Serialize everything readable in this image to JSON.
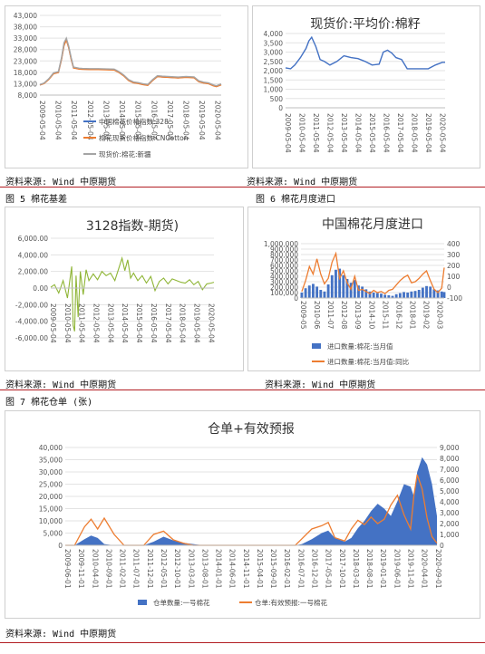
{
  "captions": {
    "source_left_1": "资料来源: Wind  中原期货",
    "source_right_1": "资料来源: Wind  中原期货",
    "fig5": "图 5 棉花基差",
    "fig6": "图 6 棉花月度进口",
    "source_left_2": "资料来源: Wind  中原期货",
    "source_right_2": "资料来源: Wind  中原期货",
    "fig7": "图 7 棉花仓单 (张)",
    "source_bottom": "资料来源: Wind 中原期货"
  },
  "chart_data": [
    {
      "id": "chart1",
      "type": "line",
      "title": "",
      "x_ticks": [
        "2009-05-04",
        "2010-05-04",
        "2011-05-04",
        "2012-05-04",
        "2013-05-04",
        "2014-05-04",
        "2015-05-04",
        "2016-05-04",
        "2017-05-04",
        "2018-05-04",
        "2019-05-04",
        "2020-05-04"
      ],
      "y_ticks": [
        "8,000",
        "13,000",
        "18,000",
        "23,000",
        "28,000",
        "33,000",
        "38,000",
        "43,000"
      ],
      "ylim": [
        8000,
        43000
      ],
      "x": [
        2009.34,
        2009.6,
        2009.9,
        2010.2,
        2010.5,
        2010.7,
        2010.85,
        2011.0,
        2011.15,
        2011.3,
        2011.45,
        2011.6,
        2011.8,
        2012.0,
        2012.5,
        2013.0,
        2013.5,
        2014.0,
        2014.3,
        2014.6,
        2014.9,
        2015.2,
        2015.5,
        2015.8,
        2016.1,
        2016.4,
        2016.7,
        2017.0,
        2017.5,
        2018.0,
        2018.5,
        2019.0,
        2019.3,
        2019.6,
        2019.9,
        2020.2,
        2020.4,
        2020.7
      ],
      "series": [
        {
          "name": "中国棉花价格指数:328",
          "color": "#4472c4",
          "values": [
            12500,
            13200,
            15000,
            17500,
            18000,
            24000,
            30000,
            32500,
            29000,
            24000,
            20000,
            19800,
            19500,
            19400,
            19300,
            19300,
            19200,
            19100,
            18000,
            16500,
            14500,
            13500,
            13200,
            12700,
            12400,
            14500,
            16200,
            16000,
            15800,
            15600,
            15900,
            15700,
            14000,
            13400,
            13100,
            12200,
            11800,
            12600
          ]
        },
        {
          "name": "棉花现货价格指数:CNCotton",
          "color": "#ed7d31",
          "values": [
            12400,
            13100,
            14900,
            17400,
            17900,
            23800,
            29700,
            32200,
            28800,
            23800,
            19900,
            19700,
            19400,
            19300,
            19200,
            19200,
            19100,
            19000,
            17900,
            16400,
            14400,
            13400,
            13100,
            12600,
            12300,
            14400,
            16100,
            15900,
            15700,
            15500,
            15800,
            15600,
            13900,
            13300,
            13000,
            12100,
            11700,
            12500
          ]
        },
        {
          "name": "现货价:棉花:新疆",
          "color": "#a5a5a5",
          "values": [
            12600,
            13300,
            15200,
            17800,
            18300,
            24500,
            31000,
            33000,
            29500,
            24500,
            20300,
            20100,
            19800,
            19700,
            19600,
            19600,
            19500,
            19400,
            18300,
            16800,
            14800,
            13800,
            13500,
            13000,
            12700,
            14800,
            16500,
            16300,
            16100,
            15900,
            16200,
            16000,
            14300,
            13700,
            13400,
            12500,
            12100,
            12900
          ]
        }
      ]
    },
    {
      "id": "chart2",
      "type": "line",
      "title": "现货价:平均价:棉籽",
      "x_ticks": [
        "2009-05-04",
        "2010-05-04",
        "2011-05-04",
        "2012-05-04",
        "2013-05-04",
        "2014-05-04",
        "2015-05-04",
        "2016-05-04",
        "2017-05-04",
        "2018-05-04",
        "2019-05-04",
        "2020-05-04"
      ],
      "y_ticks": [
        "0",
        "500",
        "1,000",
        "1,500",
        "2,000",
        "2,500",
        "3,000",
        "3,500",
        "4,000"
      ],
      "ylim": [
        0,
        4000
      ],
      "x": [
        2009.34,
        2009.7,
        2010.0,
        2010.4,
        2010.8,
        2011.0,
        2011.2,
        2011.5,
        2011.8,
        2012.1,
        2012.5,
        2013.0,
        2013.5,
        2014.0,
        2014.5,
        2015.0,
        2015.5,
        2016.0,
        2016.3,
        2016.6,
        2016.9,
        2017.2,
        2017.6,
        2018.0,
        2018.5,
        2019.0,
        2019.5,
        2020.0,
        2020.5,
        2020.7
      ],
      "series": [
        {
          "name": "",
          "color": "#4472c4",
          "values": [
            2150,
            2100,
            2300,
            2700,
            3200,
            3600,
            3800,
            3300,
            2600,
            2500,
            2300,
            2500,
            2800,
            2700,
            2650,
            2500,
            2300,
            2350,
            3000,
            3100,
            2950,
            2700,
            2600,
            2100,
            2100,
            2100,
            2100,
            2300,
            2450,
            2450
          ]
        }
      ]
    },
    {
      "id": "chart3",
      "type": "line",
      "title": "3128指数-期货)",
      "x_ticks": [
        "2009-05-04",
        "2010-05-04",
        "2011-05-04",
        "2012-05-04",
        "2013-05-04",
        "2014-05-04",
        "2015-05-04",
        "2016-05-04",
        "2017-05-04",
        "2018-05-04",
        "2019-05-04",
        "2020-05-04"
      ],
      "y_ticks": [
        "-6,000.00",
        "-4,000.00",
        "-2,000.00",
        "0.00",
        "2,000.00",
        "4,000.00",
        "6,000.00"
      ],
      "ylim": [
        -6000,
        6000
      ],
      "x": [
        2009.34,
        2009.6,
        2009.9,
        2010.2,
        2010.5,
        2010.8,
        2010.9,
        2011.0,
        2011.1,
        2011.25,
        2011.4,
        2011.6,
        2011.8,
        2012.0,
        2012.3,
        2012.6,
        2012.9,
        2013.2,
        2013.5,
        2013.8,
        2014.1,
        2014.3,
        2014.5,
        2014.7,
        2014.9,
        2015.1,
        2015.4,
        2015.7,
        2016.0,
        2016.3,
        2016.6,
        2016.9,
        2017.2,
        2017.5,
        2017.8,
        2018.1,
        2018.4,
        2018.7,
        2019.0,
        2019.3,
        2019.6,
        2019.9,
        2020.2,
        2020.5,
        2020.7
      ],
      "series": [
        {
          "name": "",
          "color": "#8fb536",
          "values": [
            100,
            400,
            -600,
            900,
            -1200,
            2600,
            -4500,
            -5200,
            1500,
            -3500,
            2000,
            -800,
            2200,
            900,
            1700,
            1000,
            2000,
            1500,
            1800,
            900,
            2500,
            3600,
            2100,
            3400,
            1200,
            1800,
            900,
            1500,
            600,
            1400,
            -300,
            800,
            1200,
            500,
            1100,
            900,
            700,
            600,
            1000,
            400,
            800,
            -200,
            500,
            600,
            700
          ]
        }
      ]
    },
    {
      "id": "chart4",
      "type": "bar",
      "title": "中国棉花月度进口",
      "x_ticks": [
        "2009-05",
        "2010-06",
        "2011-07",
        "2012-08",
        "2013-09",
        "2014-10",
        "2015-11",
        "2016-12",
        "2018-01",
        "2019-02",
        "2020-03"
      ],
      "y_ticks": [
        "0",
        "100,000",
        "200,000",
        "300,000",
        "400,000",
        "500,000",
        "600,000",
        "700,000",
        "800,000",
        "900,000",
        "1,000,000"
      ],
      "ylim": [
        0,
        1000000
      ],
      "y2_ticks": [
        "-100",
        "0",
        "100",
        "200",
        "300",
        "400"
      ],
      "y2lim": [
        -100,
        400
      ],
      "x": [
        2009.4,
        2009.7,
        2010.0,
        2010.3,
        2010.6,
        2010.9,
        2011.2,
        2011.5,
        2011.8,
        2012.1,
        2012.4,
        2012.7,
        2013.0,
        2013.3,
        2013.6,
        2013.9,
        2014.2,
        2014.5,
        2014.8,
        2015.1,
        2015.4,
        2015.7,
        2016.0,
        2016.3,
        2016.6,
        2016.9,
        2017.2,
        2017.5,
        2017.8,
        2018.1,
        2018.4,
        2018.7,
        2019.0,
        2019.3,
        2019.6,
        2019.9,
        2020.2,
        2020.5,
        2020.7
      ],
      "series": [
        {
          "name": "进口数量:棉花:当月值",
          "color": "#4472c4",
          "kind": "bar",
          "values": [
            100000,
            180000,
            230000,
            260000,
            210000,
            150000,
            120000,
            250000,
            420000,
            520000,
            540000,
            420000,
            350000,
            280000,
            330000,
            230000,
            210000,
            160000,
            120000,
            100000,
            90000,
            80000,
            60000,
            50000,
            40000,
            70000,
            90000,
            110000,
            100000,
            120000,
            130000,
            150000,
            190000,
            220000,
            210000,
            160000,
            140000,
            120000,
            110000
          ]
        },
        {
          "name": "进口数量:棉花:当月值:同比",
          "color": "#ed7d31",
          "kind": "line",
          "values": [
            -40,
            60,
            190,
            120,
            260,
            120,
            30,
            80,
            230,
            310,
            80,
            150,
            40,
            -20,
            100,
            -30,
            -20,
            -40,
            -60,
            -30,
            -50,
            -40,
            -60,
            -30,
            -20,
            20,
            60,
            90,
            110,
            40,
            50,
            80,
            120,
            150,
            60,
            -20,
            -50,
            -10,
            180
          ]
        }
      ]
    },
    {
      "id": "chart5",
      "type": "area",
      "title": "仓单+有效预报",
      "x_ticks": [
        "2009-06-01",
        "2009-11-01",
        "2010-04-01",
        "2010-09-01",
        "2011-02-01",
        "2011-07-01",
        "2011-12-01",
        "2012-05-01",
        "2012-10-01",
        "2013-03-01",
        "2013-08-01",
        "2014-01-01",
        "2014-06-01",
        "2014-11-01",
        "2015-04-01",
        "2015-09-01",
        "2016-02-01",
        "2016-07-01",
        "2016-12-01",
        "2017-05-01",
        "2017-10-01",
        "2018-03-01",
        "2018-08-01",
        "2019-01-01",
        "2019-06-01",
        "2019-11-01",
        "2020-04-01",
        "2020-09-01"
      ],
      "y_ticks": [
        "0",
        "5,000",
        "10,000",
        "15,000",
        "20,000",
        "25,000",
        "30,000",
        "35,000",
        "40,000"
      ],
      "ylim": [
        0,
        40000
      ],
      "y2_ticks": [
        "0",
        "1,000",
        "2,000",
        "3,000",
        "4,000",
        "5,000",
        "6,000",
        "7,000",
        "8,000",
        "9,000"
      ],
      "y2lim": [
        0,
        9000
      ],
      "x": [
        2009.42,
        2009.7,
        2010.0,
        2010.2,
        2010.4,
        2010.6,
        2010.9,
        2011.2,
        2011.5,
        2011.8,
        2012.1,
        2012.4,
        2012.7,
        2013.0,
        2013.3,
        2013.6,
        2014.0,
        2014.4,
        2014.8,
        2015.2,
        2015.6,
        2016.0,
        2016.4,
        2016.6,
        2016.9,
        2017.2,
        2017.4,
        2017.6,
        2017.9,
        2018.1,
        2018.3,
        2018.5,
        2018.7,
        2018.9,
        2019.1,
        2019.3,
        2019.5,
        2019.7,
        2019.9,
        2020.0,
        2020.1,
        2020.25,
        2020.4,
        2020.55,
        2020.7
      ],
      "series": [
        {
          "name": "仓单数量:一号棉花",
          "color": "#4472c4",
          "kind": "area",
          "values": [
            0,
            0,
            2500,
            4000,
            3000,
            500,
            0,
            0,
            0,
            0,
            1500,
            3500,
            2000,
            1000,
            500,
            0,
            0,
            0,
            0,
            0,
            0,
            0,
            0,
            500,
            2500,
            5000,
            6000,
            3000,
            1500,
            3000,
            7000,
            10000,
            14000,
            17000,
            15000,
            12000,
            18000,
            25000,
            24000,
            20000,
            30000,
            36000,
            33000,
            25000,
            12000
          ]
        },
        {
          "name": "仓单:有效预报:一号棉花",
          "color": "#ed7d31",
          "kind": "line",
          "values": [
            0,
            0,
            1700,
            2400,
            1500,
            2500,
            1000,
            0,
            0,
            0,
            1000,
            1300,
            500,
            200,
            0,
            0,
            0,
            0,
            0,
            0,
            0,
            0,
            0,
            600,
            1500,
            1800,
            2100,
            700,
            400,
            1500,
            2300,
            1900,
            2600,
            2000,
            2400,
            3700,
            4600,
            2800,
            1500,
            4600,
            6500,
            5200,
            2500,
            800,
            200
          ]
        }
      ]
    }
  ]
}
